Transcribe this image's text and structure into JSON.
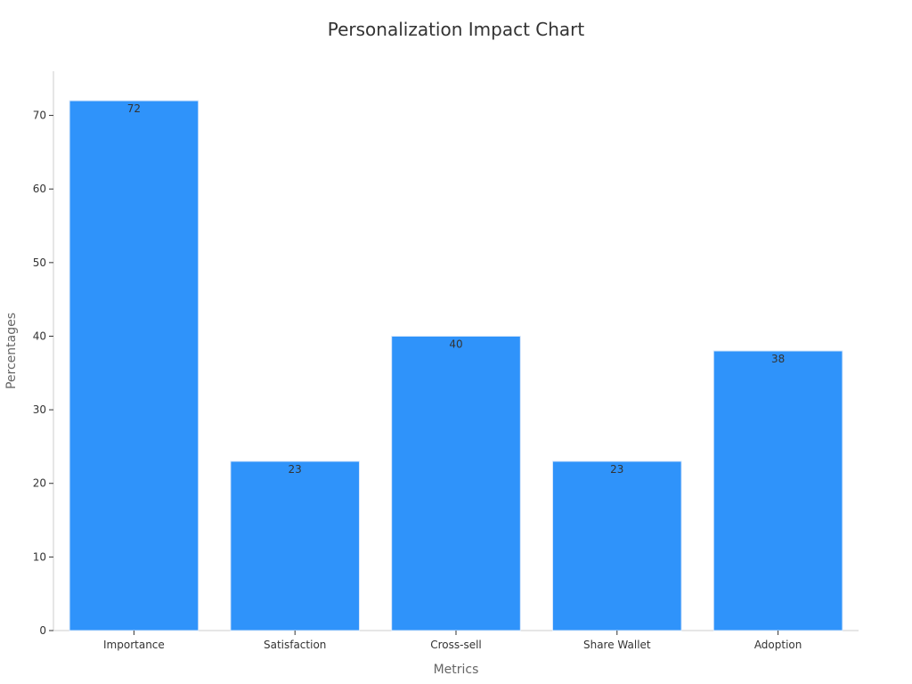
{
  "chart_data": {
    "type": "bar",
    "title": "Personalization Impact Chart",
    "xlabel": "Metrics",
    "ylabel": "Percentages",
    "categories": [
      "Importance",
      "Satisfaction",
      "Cross-sell",
      "Share Wallet",
      "Adoption"
    ],
    "values": [
      72,
      23,
      40,
      23,
      38
    ],
    "ylim": [
      0,
      76
    ],
    "yticks": [
      0,
      10,
      20,
      30,
      40,
      50,
      60,
      70
    ],
    "bar_color": "#2f93fa",
    "bar_edge_color": "#d9e8fb",
    "grid": false,
    "legend": "none",
    "data_labels": true
  }
}
